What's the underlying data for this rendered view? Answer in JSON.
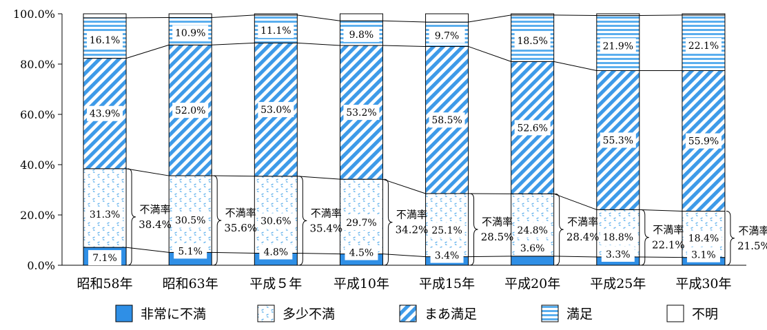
{
  "chart_data": {
    "type": "bar",
    "stacked": true,
    "percent_stacked": true,
    "categories": [
      "昭和58年",
      "昭和63年",
      "平成５年",
      "平成10年",
      "平成15年",
      "平成20年",
      "平成25年",
      "平成30年"
    ],
    "series": [
      {
        "name": "非常に不満",
        "values": [
          7.1,
          5.1,
          4.8,
          4.5,
          3.4,
          3.6,
          3.3,
          3.1
        ],
        "labels": [
          "7.1%",
          "5.1%",
          "4.8%",
          "4.5%",
          "3.4%",
          "3.6%",
          "3.3%",
          "3.1%"
        ],
        "color": "#2f8fe6",
        "pattern": "solid"
      },
      {
        "name": "多少不満",
        "values": [
          31.3,
          30.5,
          30.6,
          29.7,
          25.1,
          24.8,
          18.8,
          18.4
        ],
        "labels": [
          "31.3%",
          "30.5%",
          "30.6%",
          "29.7%",
          "25.1%",
          "24.8%",
          "18.8%",
          "18.4%"
        ],
        "color": "#7ec0f0",
        "pattern": "dots"
      },
      {
        "name": "まあ満足",
        "values": [
          43.9,
          52.0,
          53.0,
          53.2,
          58.5,
          52.6,
          55.3,
          55.9
        ],
        "labels": [
          "43.9%",
          "52.0%",
          "53.0%",
          "53.2%",
          "58.5%",
          "52.6%",
          "55.3%",
          "55.9%"
        ],
        "color": "#3d9ae8",
        "pattern": "diagonal"
      },
      {
        "name": "満足",
        "values": [
          16.1,
          10.9,
          11.1,
          9.8,
          9.7,
          18.5,
          21.9,
          22.1
        ],
        "labels": [
          "16.1%",
          "10.9%",
          "11.1%",
          "9.8%",
          "9.7%",
          "18.5%",
          "21.9%",
          "22.1%"
        ],
        "color": "#5aaeee",
        "pattern": "horizontal"
      },
      {
        "name": "不明",
        "values": [
          1.6,
          1.5,
          0.5,
          2.8,
          3.3,
          0.5,
          0.7,
          0.5
        ],
        "color": "#ffffff",
        "pattern": "none"
      }
    ],
    "annotation_label": "不満率",
    "dissatisfaction_rate": [
      38.4,
      35.6,
      35.4,
      34.2,
      28.5,
      28.4,
      22.1,
      21.5
    ],
    "dissatisfaction_rate_labels": [
      "38.4%",
      "35.6%",
      "35.4%",
      "34.2%",
      "28.5%",
      "28.4%",
      "22.1%",
      "21.5%"
    ],
    "ylim": [
      0,
      100
    ],
    "yticks": [
      0,
      20,
      40,
      60,
      80,
      100
    ],
    "ytick_labels": [
      "0.0%",
      "20.0%",
      "40.0%",
      "60.0%",
      "80.0%",
      "100.0%"
    ],
    "title": "",
    "xlabel": "",
    "ylabel": "",
    "legend_position": "bottom",
    "grid": false
  }
}
